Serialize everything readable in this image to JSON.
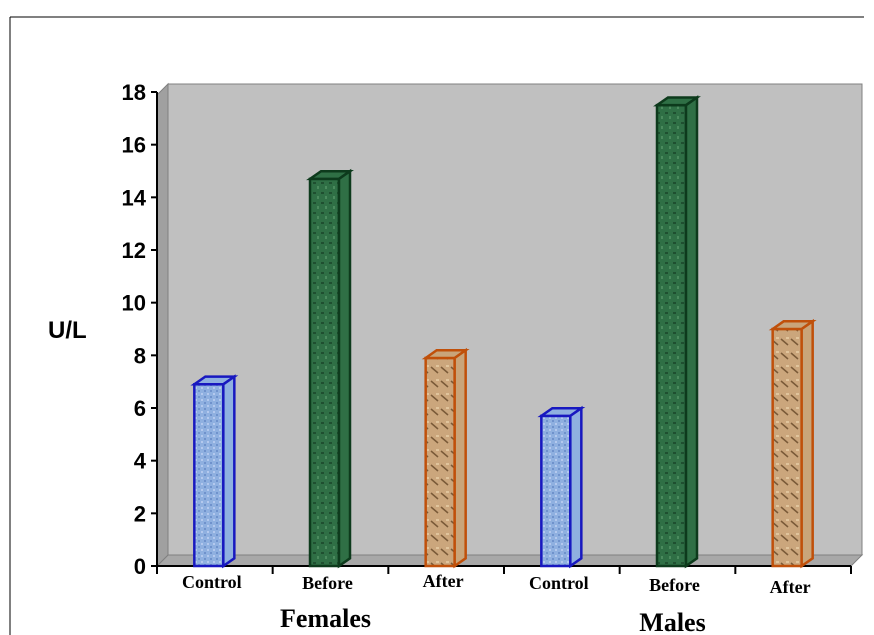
{
  "chart_data": {
    "type": "bar",
    "title": "",
    "xlabel": "",
    "ylabel": "U/L",
    "ylim": [
      0,
      18
    ],
    "yticks": [
      0,
      2,
      4,
      6,
      8,
      10,
      12,
      14,
      16,
      18
    ],
    "categories": [
      "Control",
      "Before",
      "After",
      "Control",
      "Before",
      "After"
    ],
    "values": [
      6.9,
      14.7,
      7.9,
      5.7,
      17.5,
      9.0
    ],
    "groups": [
      {
        "label": "Females",
        "categories": [
          "Control",
          "Before",
          "After"
        ]
      },
      {
        "label": "Males",
        "categories": [
          "Control",
          "Before",
          "After"
        ]
      }
    ],
    "colors": {
      "Control": {
        "fill": "#8fb0e0",
        "edge": "#1818c0"
      },
      "Before": {
        "fill": "#2f6f45",
        "edge": "#0d3a1c"
      },
      "After": {
        "fill": "#c9a57a",
        "edge": "#c0500a"
      },
      "plot_background": "#c0c0c0"
    },
    "grid": false,
    "legend": "none"
  }
}
